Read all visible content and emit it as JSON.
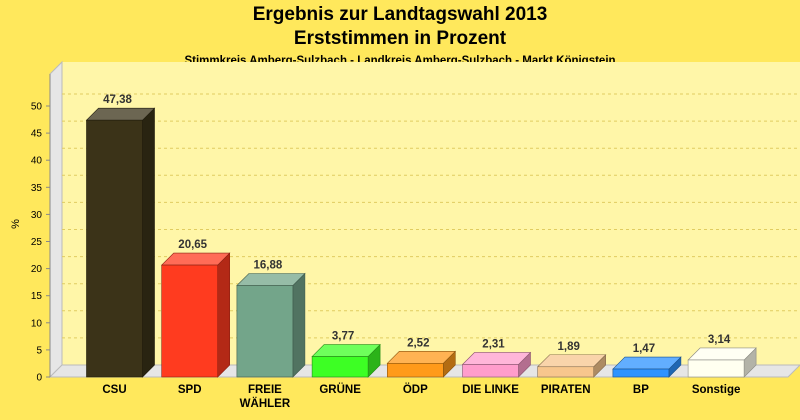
{
  "chart_data": {
    "type": "bar",
    "title": "Ergebnis zur Landtagswahl 2013",
    "subtitle": "Erststimmen in Prozent",
    "caption": "Stimmkreis Amberg-Sulzbach - Landkreis Amberg-Sulzbach - Markt Königstein",
    "ylabel": "%",
    "ylim": [
      0,
      50
    ],
    "yticks": [
      0,
      5,
      10,
      15,
      20,
      25,
      30,
      35,
      40,
      45,
      50
    ],
    "grid": true,
    "categories": [
      [
        "CSU"
      ],
      [
        "SPD"
      ],
      [
        "FREIE",
        "WÄHLER"
      ],
      [
        "GRÜNE"
      ],
      [
        "ÖDP"
      ],
      [
        "DIE LINKE"
      ],
      [
        "PIRATEN"
      ],
      [
        "BP"
      ],
      [
        "Sonstige"
      ]
    ],
    "values": [
      47.38,
      20.65,
      16.88,
      3.77,
      2.52,
      2.31,
      1.89,
      1.47,
      3.14
    ],
    "value_labels": [
      "47,38",
      "20,65",
      "16,88",
      "3,77",
      "2,52",
      "2,31",
      "1,89",
      "1,47",
      "3,14"
    ],
    "colors": [
      "#3b3318",
      "#ff3b1f",
      "#73a58a",
      "#3dff24",
      "#ff9a1a",
      "#ff9dcc",
      "#f7c68d",
      "#2e93ff",
      "#fffff0"
    ]
  }
}
